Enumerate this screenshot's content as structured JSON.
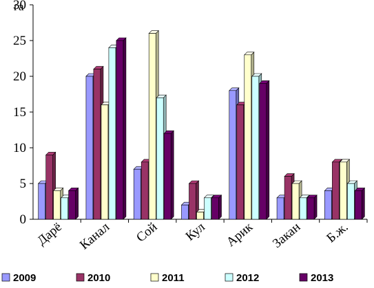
{
  "chart_data": {
    "type": "bar",
    "ylabel": "га",
    "ylim": [
      0,
      30
    ],
    "yticks": [
      0,
      5,
      10,
      15,
      20,
      25,
      30
    ],
    "grid": false,
    "legend_position": "bottom",
    "categories": [
      "Дарё",
      "Канал",
      "Сой",
      "Кул",
      "Арик",
      "Закан",
      "Б.ж."
    ],
    "series": [
      {
        "name": "2009",
        "color": "#9999ff",
        "values": [
          5,
          20,
          7,
          2,
          18,
          3,
          4
        ]
      },
      {
        "name": "2010",
        "color": "#993366",
        "values": [
          9,
          21,
          8,
          5,
          16,
          6,
          8
        ]
      },
      {
        "name": "2011",
        "color": "#ffffcc",
        "values": [
          4,
          16,
          26,
          1,
          23,
          5,
          8
        ]
      },
      {
        "name": "2012",
        "color": "#ccffff",
        "values": [
          3,
          24,
          17,
          3,
          20,
          3,
          5
        ]
      },
      {
        "name": "2013",
        "color": "#660066",
        "values": [
          4,
          25,
          12,
          3,
          19,
          3,
          4
        ]
      }
    ]
  }
}
